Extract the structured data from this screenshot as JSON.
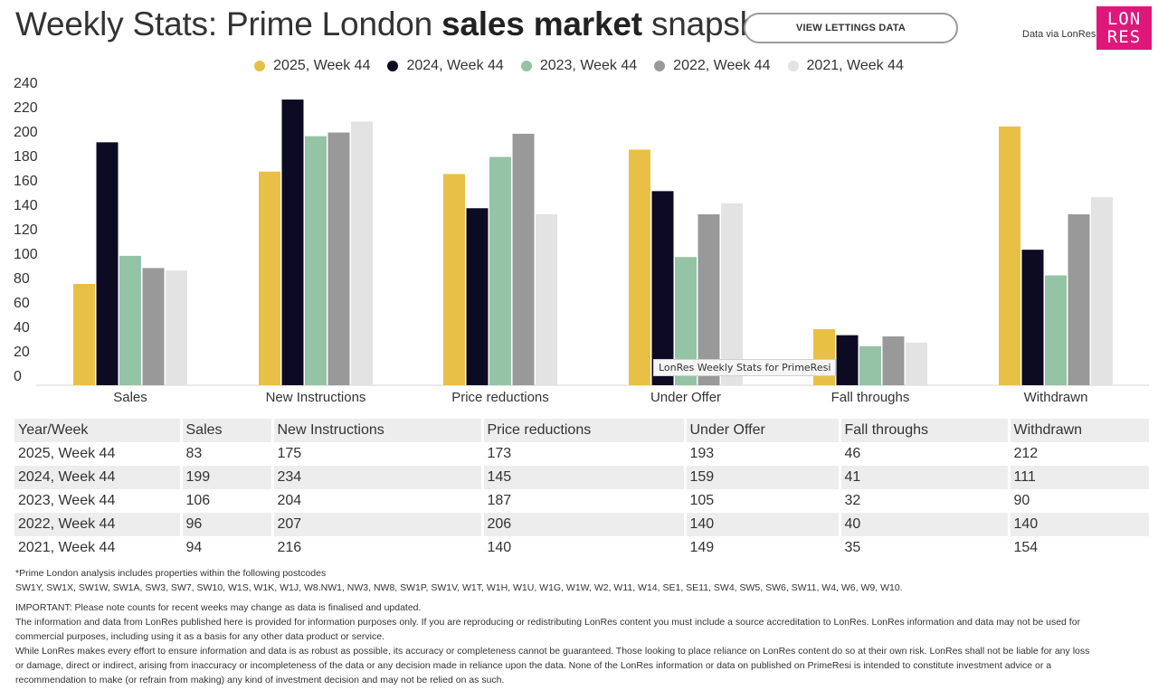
{
  "header": {
    "title_prefix": "Weekly Stats: Prime London ",
    "title_bold": "sales market",
    "title_suffix": " snapshot",
    "lettings_button": "VIEW LETTINGS DATA",
    "data_via": "Data via LonRes",
    "logo_line1": "LON",
    "logo_line2": "RES"
  },
  "colors": {
    "s2025": "#e9c046",
    "s2024": "#0d0b23",
    "s2023": "#95c3a6",
    "s2022": "#999999",
    "s2021": "#e3e3e3",
    "brand": "#e0177a"
  },
  "chart_data": {
    "type": "bar",
    "title": "Weekly Stats: Prime London sales market snapshot",
    "xlabel": "",
    "ylabel": "",
    "ylim": [
      0,
      240
    ],
    "yticks": [
      0,
      20,
      40,
      60,
      80,
      100,
      120,
      140,
      160,
      180,
      200,
      220,
      240
    ],
    "grid": false,
    "legend_position": "top-center",
    "categories": [
      "Sales",
      "New Instructions",
      "Price reductions",
      "Under Offer",
      "Fall throughs",
      "Withdrawn"
    ],
    "series": [
      {
        "name": "2025, Week 44",
        "color": "#e9c046",
        "values": [
          83,
          175,
          173,
          193,
          46,
          212
        ]
      },
      {
        "name": "2024, Week 44",
        "color": "#0d0b23",
        "values": [
          199,
          234,
          145,
          159,
          41,
          111
        ]
      },
      {
        "name": "2023, Week 44",
        "color": "#95c3a6",
        "values": [
          106,
          204,
          187,
          105,
          32,
          90
        ]
      },
      {
        "name": "2022, Week 44",
        "color": "#999999",
        "values": [
          96,
          207,
          206,
          140,
          40,
          140
        ]
      },
      {
        "name": "2021, Week 44",
        "color": "#e3e3e3",
        "values": [
          94,
          216,
          140,
          149,
          35,
          154
        ]
      }
    ]
  },
  "tooltip": "LonRes Weekly Stats for PrimeResi",
  "table": {
    "headers": [
      "Year/Week",
      "Sales",
      "New Instructions",
      "Price reductions",
      "Under Offer",
      "Fall throughs",
      "Withdrawn"
    ],
    "rows": [
      [
        "2025, Week 44",
        "83",
        "175",
        "173",
        "193",
        "46",
        "212"
      ],
      [
        "2024, Week 44",
        "199",
        "234",
        "145",
        "159",
        "41",
        "111"
      ],
      [
        "2023, Week 44",
        "106",
        "204",
        "187",
        "105",
        "32",
        "90"
      ],
      [
        "2022, Week 44",
        "96",
        "207",
        "206",
        "140",
        "40",
        "140"
      ],
      [
        "2021, Week 44",
        "94",
        "216",
        "140",
        "149",
        "35",
        "154"
      ]
    ]
  },
  "notes": {
    "postcodes_heading": "*Prime London analysis includes properties within the following postcodes",
    "postcodes_list": "SW1Y, SW1X, SW1W, SW1A, SW3, SW7, SW10, W1S, W1K, W1J, W8.NW1, NW3, NW8, SW1P, SW1V, W1T, W1H, W1U, W1G, W1W, W2, W11, W14, SE1, SE11, SW4, SW5, SW6, SW11, W4, W6, W9, W10.",
    "important": "IMPORTANT: Please note counts for recent weeks may change as data is finalised and updated.",
    "disclaimer_1": "The information and data from LonRes published here is provided for information purposes only. If you are reproducing or redistributing LonRes content you must include a source accreditation to LonRes. LonRes information and data may not be used for",
    "disclaimer_2": "commercial purposes, including using it as a basis for any other data product or service.",
    "disclaimer_3": "While LonRes makes every effort to ensure information and data is as robust as possible, its accuracy or completeness cannot be guaranteed. Those looking to place reliance on LonRes content do so at their own risk. LonRes shall not be liable for any loss",
    "disclaimer_4": "or damage, direct or indirect, arising from inaccuracy or incompleteness of the data or any decision made in reliance upon the data. None of the LonRes information or data on published on PrimeResi is intended to constitute investment advice or a",
    "disclaimer_5": "recommendation to make (or refrain from making) any kind of investment decision and may not be relied on as such."
  }
}
